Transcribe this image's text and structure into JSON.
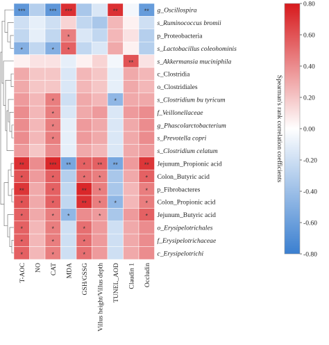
{
  "chart_data": {
    "type": "heatmap",
    "title": "",
    "columns": [
      "T-AOC",
      "NO",
      "CAT",
      "MDA",
      "GSH/GSSG",
      "Villus height/Villus depth",
      "TUNEL_AOD",
      "Claudin 1",
      "Occludin"
    ],
    "rows": [
      "g_Oscillospira",
      "s_Ruminococcus bromii",
      "p_Proteobacteria",
      "s_Lactobacillus coleohominis",
      "s_Akkermansia muciniphila",
      "c_Clostridia",
      "o_Clostridiales",
      "s_Clostridium bu tyricum",
      "f_Veillonellaceae",
      "g_Phascolarctobacterium",
      "s_Prevotella copri",
      "s_Clostridium celatum",
      "Jejunum_Propionic acid",
      "Colon_Butyric acid",
      "p_Fibrobacteres",
      "Colon_Propionic acid",
      "Jejunum_Butyric acid",
      "o_Erysipelotrichales",
      "f_Erysipelotrichaceae",
      "c_Erysipelotrichi"
    ],
    "italic_rows": [
      true,
      true,
      false,
      true,
      true,
      false,
      false,
      true,
      true,
      true,
      true,
      true,
      false,
      false,
      false,
      false,
      false,
      true,
      true,
      true
    ],
    "values": [
      [
        -0.65,
        -0.3,
        -0.65,
        0.72,
        -0.35,
        -0.15,
        0.72,
        -0.05,
        -0.62
      ],
      [
        -0.2,
        -0.1,
        -0.2,
        0.15,
        -0.25,
        -0.35,
        0.25,
        0.05,
        -0.2
      ],
      [
        -0.25,
        -0.1,
        -0.25,
        0.45,
        -0.15,
        -0.25,
        0.25,
        0.1,
        -0.3
      ],
      [
        -0.5,
        -0.25,
        -0.5,
        0.55,
        -0.25,
        -0.15,
        0.3,
        0.05,
        -0.3
      ],
      [
        0.05,
        0.1,
        0.1,
        -0.1,
        0.05,
        0.15,
        -0.05,
        0.6,
        0.1
      ],
      [
        0.3,
        0.2,
        0.2,
        -0.15,
        0.25,
        0.2,
        -0.1,
        0.3,
        0.25
      ],
      [
        0.3,
        0.2,
        0.2,
        -0.15,
        0.25,
        0.2,
        -0.1,
        0.3,
        0.25
      ],
      [
        0.35,
        0.25,
        0.45,
        -0.2,
        0.3,
        0.25,
        -0.45,
        0.3,
        0.3
      ],
      [
        0.4,
        0.25,
        0.45,
        -0.15,
        0.3,
        0.35,
        -0.15,
        0.35,
        0.4
      ],
      [
        0.4,
        0.25,
        0.45,
        -0.1,
        0.35,
        0.3,
        -0.15,
        0.3,
        0.4
      ],
      [
        0.4,
        0.25,
        0.45,
        -0.1,
        0.35,
        0.3,
        -0.15,
        0.3,
        0.4
      ],
      [
        0.35,
        0.2,
        0.4,
        -0.1,
        0.3,
        0.25,
        -0.15,
        0.3,
        0.35
      ],
      [
        0.72,
        0.4,
        0.75,
        -0.55,
        0.55,
        0.55,
        -0.55,
        0.35,
        0.7
      ],
      [
        0.6,
        0.35,
        0.55,
        -0.3,
        0.5,
        0.45,
        -0.35,
        0.3,
        0.55
      ],
      [
        0.7,
        0.3,
        0.55,
        -0.25,
        0.75,
        0.45,
        -0.35,
        0.25,
        0.45
      ],
      [
        0.6,
        0.3,
        0.55,
        -0.25,
        0.72,
        0.45,
        -0.45,
        0.25,
        0.45
      ],
      [
        0.55,
        0.3,
        0.45,
        -0.45,
        0.4,
        0.35,
        -0.35,
        0.35,
        0.55
      ],
      [
        0.55,
        0.25,
        0.45,
        -0.2,
        0.5,
        0.35,
        -0.2,
        0.3,
        0.4
      ],
      [
        0.55,
        0.25,
        0.45,
        -0.2,
        0.5,
        0.35,
        -0.2,
        0.3,
        0.4
      ],
      [
        0.55,
        0.25,
        0.45,
        -0.2,
        0.5,
        0.35,
        -0.2,
        0.3,
        0.4
      ]
    ],
    "significance": [
      [
        "***",
        "",
        "***",
        "***",
        "",
        "",
        "**",
        "",
        "**"
      ],
      [
        "",
        "",
        "",
        "",
        "",
        "",
        "",
        "",
        ""
      ],
      [
        "",
        "",
        "",
        "*",
        "",
        "",
        "",
        "",
        ""
      ],
      [
        "*",
        "",
        "*",
        "*",
        "",
        "",
        "",
        "",
        ""
      ],
      [
        "",
        "",
        "",
        "",
        "",
        "",
        "",
        "**",
        ""
      ],
      [
        "",
        "",
        "",
        "",
        "",
        "",
        "",
        "",
        ""
      ],
      [
        "",
        "",
        "",
        "",
        "",
        "",
        "",
        "",
        ""
      ],
      [
        "",
        "",
        "*",
        "",
        "",
        "",
        "*",
        "",
        ""
      ],
      [
        "",
        "",
        "*",
        "",
        "",
        "",
        "",
        "",
        ""
      ],
      [
        "",
        "",
        "*",
        "",
        "",
        "",
        "",
        "",
        ""
      ],
      [
        "",
        "",
        "*",
        "",
        "",
        "",
        "",
        "",
        ""
      ],
      [
        "",
        "",
        "",
        "",
        "",
        "",
        "",
        "",
        ""
      ],
      [
        "**",
        "",
        "***",
        "**",
        "*",
        "**",
        "**",
        "",
        "**"
      ],
      [
        "*",
        "",
        "*",
        "",
        "*",
        "*",
        "",
        "",
        "*"
      ],
      [
        "**",
        "",
        "*",
        "",
        "**",
        "*",
        "",
        "",
        "*"
      ],
      [
        "*",
        "",
        "*",
        "",
        "**",
        "*",
        "*",
        "",
        "*"
      ],
      [
        "*",
        "",
        "*",
        "*",
        "",
        "*",
        "",
        "",
        "*"
      ],
      [
        "*",
        "",
        "*",
        "",
        "*",
        "",
        "",
        "",
        ""
      ],
      [
        "*",
        "",
        "*",
        "",
        "*",
        "",
        "",
        "",
        ""
      ],
      [
        "*",
        "",
        "*",
        "",
        "*",
        "",
        "",
        "",
        ""
      ]
    ],
    "colorbar": {
      "title": "Spearman's rank correlation coefficients",
      "ticks": [
        "0.80",
        "0.60",
        "0.40",
        "0.20",
        "0.00",
        "-0.20",
        "-0.40",
        "-0.60",
        "-0.80"
      ],
      "range": [
        -0.8,
        0.8
      ],
      "color_low": "#3a7fd0",
      "color_mid": "#ffffff",
      "color_high": "#d7191c"
    },
    "dendrogram": "left, hierarchical clustering of rows"
  }
}
